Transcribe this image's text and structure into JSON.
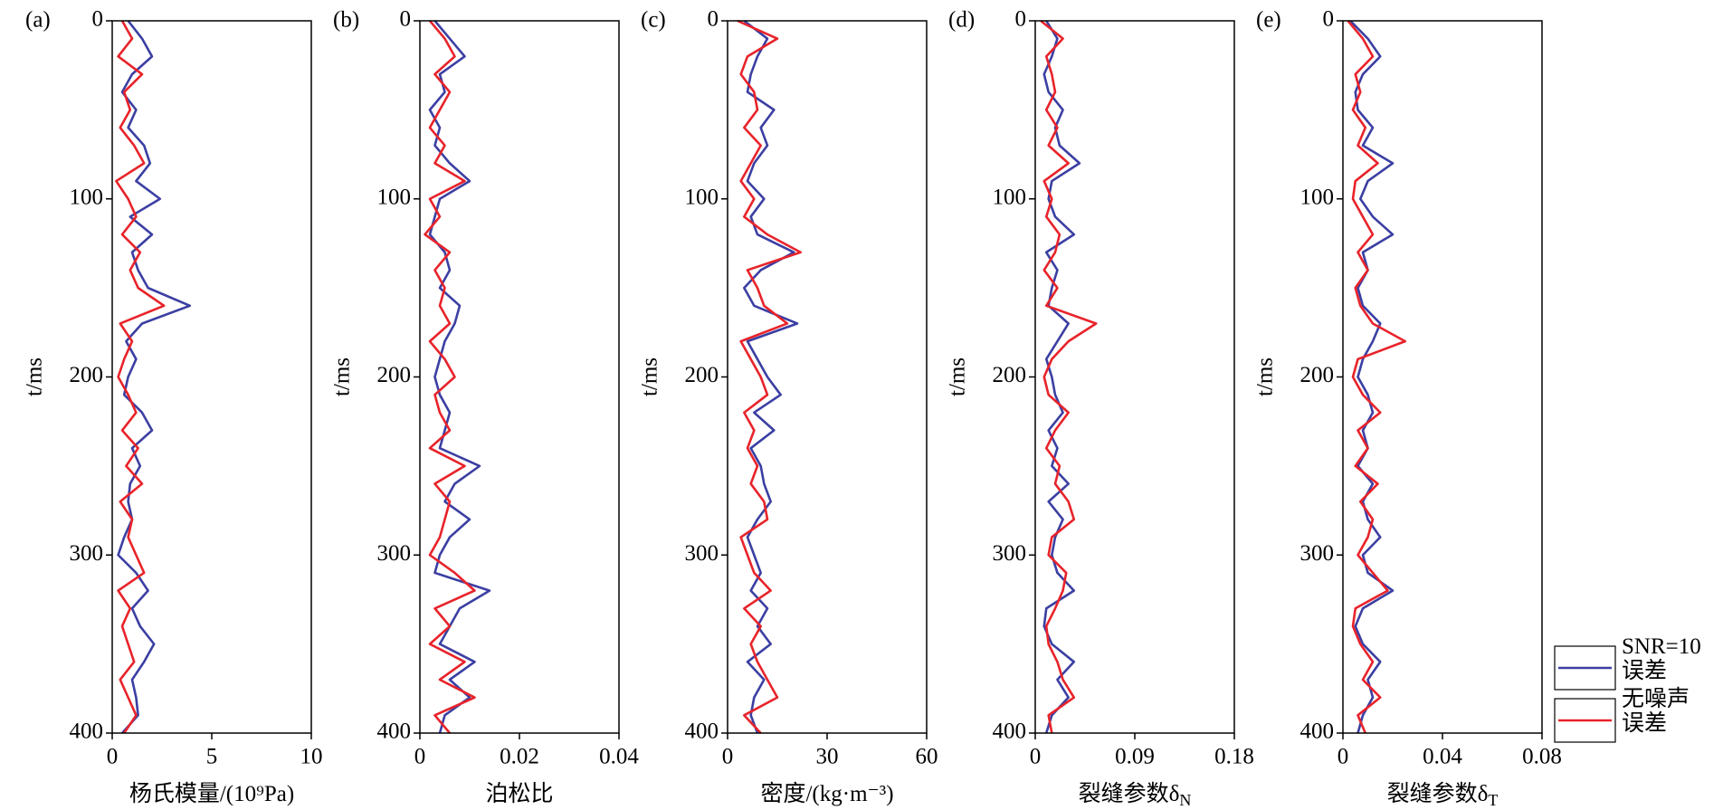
{
  "chart_data": [
    {
      "type": "line",
      "panel": "(a)",
      "xlabel": "杨氏模量/(10⁹Pa)",
      "ylabel": "t/ms",
      "xlim": [
        0,
        10
      ],
      "xticks": [
        0,
        5,
        10
      ],
      "ylim": [
        0,
        400
      ],
      "yticks": [
        0,
        100,
        200,
        300,
        400
      ],
      "yreverse": true,
      "y": [
        0,
        10,
        20,
        30,
        40,
        50,
        60,
        70,
        80,
        90,
        100,
        110,
        120,
        130,
        140,
        150,
        160,
        170,
        180,
        190,
        200,
        210,
        220,
        230,
        240,
        250,
        260,
        270,
        280,
        290,
        300,
        310,
        320,
        330,
        340,
        350,
        360,
        370,
        380,
        390,
        400
      ],
      "series": [
        {
          "name": "SNR=10\n误差",
          "color": "#3b3fa2",
          "values": [
            0.8,
            1.5,
            2.0,
            1.0,
            0.5,
            1.2,
            0.8,
            1.6,
            1.9,
            1.2,
            2.4,
            0.9,
            2.0,
            1.0,
            1.3,
            1.8,
            3.9,
            1.5,
            0.7,
            1.2,
            0.8,
            0.6,
            1.5,
            2.0,
            1.0,
            1.4,
            0.9,
            0.8,
            1.0,
            0.6,
            0.3,
            1.2,
            1.8,
            1.0,
            1.4,
            2.1,
            1.6,
            1.0,
            1.2,
            1.3,
            0.5
          ]
        },
        {
          "name": "无噪声\n误差",
          "color": "#e8232a",
          "values": [
            0.5,
            1.0,
            0.3,
            1.5,
            0.6,
            0.9,
            0.4,
            1.1,
            1.6,
            0.2,
            0.8,
            1.2,
            0.5,
            1.4,
            0.9,
            1.3,
            2.6,
            0.4,
            1.0,
            0.6,
            0.3,
            0.8,
            1.2,
            0.5,
            1.3,
            0.7,
            1.5,
            0.4,
            1.0,
            0.8,
            1.2,
            1.6,
            0.3,
            0.9,
            0.5,
            0.8,
            1.1,
            0.4,
            0.8,
            1.2,
            0.6
          ]
        }
      ]
    },
    {
      "type": "line",
      "panel": "(b)",
      "xlabel": "泊松比",
      "ylabel": "t/ms",
      "xlim": [
        0,
        0.04
      ],
      "xticks": [
        0,
        0.02,
        0.04
      ],
      "ylim": [
        0,
        400
      ],
      "yticks": [
        0,
        100,
        200,
        300,
        400
      ],
      "yreverse": true,
      "y": [
        0,
        10,
        20,
        30,
        40,
        50,
        60,
        70,
        80,
        90,
        100,
        110,
        120,
        130,
        140,
        150,
        160,
        170,
        180,
        190,
        200,
        210,
        220,
        230,
        240,
        250,
        260,
        270,
        280,
        290,
        300,
        310,
        320,
        330,
        340,
        350,
        360,
        370,
        380,
        390,
        400
      ],
      "series": [
        {
          "color": "#3b3fa2",
          "values": [
            0.003,
            0.006,
            0.009,
            0.004,
            0.005,
            0.002,
            0.004,
            0.003,
            0.006,
            0.01,
            0.004,
            0.003,
            0.002,
            0.005,
            0.006,
            0.004,
            0.008,
            0.007,
            0.005,
            0.004,
            0.003,
            0.004,
            0.006,
            0.005,
            0.004,
            0.012,
            0.007,
            0.005,
            0.01,
            0.006,
            0.004,
            0.003,
            0.014,
            0.008,
            0.006,
            0.004,
            0.011,
            0.006,
            0.01,
            0.005,
            0.004
          ]
        },
        {
          "color": "#e8232a",
          "values": [
            0.002,
            0.005,
            0.007,
            0.003,
            0.006,
            0.004,
            0.002,
            0.005,
            0.003,
            0.009,
            0.002,
            0.004,
            0.001,
            0.006,
            0.003,
            0.005,
            0.004,
            0.006,
            0.002,
            0.005,
            0.007,
            0.003,
            0.004,
            0.006,
            0.002,
            0.009,
            0.003,
            0.006,
            0.005,
            0.004,
            0.002,
            0.007,
            0.011,
            0.003,
            0.006,
            0.002,
            0.009,
            0.004,
            0.011,
            0.003,
            0.006
          ]
        }
      ]
    },
    {
      "type": "line",
      "panel": "(c)",
      "xlabel": "密度/(kg·m⁻³)",
      "ylabel": "t/ms",
      "xlim": [
        0,
        60
      ],
      "xticks": [
        0,
        30,
        60
      ],
      "ylim": [
        0,
        400
      ],
      "yticks": [
        0,
        100,
        200,
        300,
        400
      ],
      "yreverse": true,
      "y": [
        0,
        10,
        20,
        30,
        40,
        50,
        60,
        70,
        80,
        90,
        100,
        110,
        120,
        130,
        140,
        150,
        160,
        170,
        180,
        190,
        200,
        210,
        220,
        230,
        240,
        250,
        260,
        270,
        280,
        290,
        300,
        310,
        320,
        330,
        340,
        350,
        360,
        370,
        380,
        390,
        400
      ],
      "series": [
        {
          "color": "#3b3fa2",
          "values": [
            5,
            12,
            9,
            7,
            6,
            14,
            10,
            12,
            8,
            6,
            11,
            7,
            9,
            20,
            10,
            5,
            8,
            21,
            6,
            9,
            12,
            16,
            8,
            14,
            7,
            10,
            11,
            13,
            9,
            6,
            8,
            10,
            7,
            12,
            9,
            13,
            6,
            11,
            8,
            7,
            9
          ]
        },
        {
          "color": "#e8232a",
          "values": [
            3,
            15,
            6,
            4,
            8,
            9,
            5,
            10,
            7,
            4,
            8,
            5,
            12,
            22,
            6,
            9,
            11,
            18,
            4,
            7,
            10,
            12,
            5,
            8,
            6,
            9,
            7,
            11,
            12,
            4,
            6,
            8,
            13,
            5,
            10,
            7,
            9,
            12,
            15,
            5,
            10
          ]
        }
      ]
    },
    {
      "type": "line",
      "panel": "(d)",
      "xlabel": "裂缝参数δ",
      "xlabel_sub": "N",
      "ylabel": "t/ms",
      "xlim": [
        0,
        0.18
      ],
      "xticks": [
        0,
        0.09,
        0.18
      ],
      "ylim": [
        0,
        400
      ],
      "yticks": [
        0,
        100,
        200,
        300,
        400
      ],
      "yreverse": true,
      "y": [
        0,
        10,
        20,
        30,
        40,
        50,
        60,
        70,
        80,
        90,
        100,
        110,
        120,
        130,
        140,
        150,
        160,
        170,
        180,
        190,
        200,
        210,
        220,
        230,
        240,
        250,
        260,
        270,
        280,
        290,
        300,
        310,
        320,
        330,
        340,
        350,
        360,
        370,
        380,
        390,
        400
      ],
      "series": [
        {
          "color": "#3b3fa2",
          "values": [
            0.01,
            0.02,
            0.015,
            0.008,
            0.012,
            0.025,
            0.018,
            0.022,
            0.04,
            0.015,
            0.012,
            0.018,
            0.035,
            0.01,
            0.02,
            0.015,
            0.012,
            0.03,
            0.02,
            0.01,
            0.015,
            0.018,
            0.025,
            0.012,
            0.02,
            0.015,
            0.03,
            0.012,
            0.025,
            0.018,
            0.015,
            0.02,
            0.035,
            0.01,
            0.008,
            0.015,
            0.035,
            0.02,
            0.03,
            0.015,
            0.01
          ]
        },
        {
          "color": "#e8232a",
          "values": [
            0.005,
            0.025,
            0.01,
            0.015,
            0.018,
            0.01,
            0.02,
            0.012,
            0.03,
            0.008,
            0.015,
            0.01,
            0.022,
            0.018,
            0.008,
            0.02,
            0.01,
            0.055,
            0.03,
            0.015,
            0.008,
            0.012,
            0.03,
            0.018,
            0.01,
            0.022,
            0.018,
            0.03,
            0.035,
            0.015,
            0.012,
            0.028,
            0.025,
            0.018,
            0.01,
            0.012,
            0.02,
            0.025,
            0.035,
            0.012,
            0.015
          ]
        }
      ]
    },
    {
      "type": "line",
      "panel": "(e)",
      "xlabel": "裂缝参数δ",
      "xlabel_sub": "T",
      "ylabel": "t/ms",
      "xlim": [
        0,
        0.08
      ],
      "xticks": [
        0,
        0.04,
        0.08
      ],
      "ylim": [
        0,
        400
      ],
      "yticks": [
        0,
        100,
        200,
        300,
        400
      ],
      "yreverse": true,
      "y": [
        0,
        10,
        20,
        30,
        40,
        50,
        60,
        70,
        80,
        90,
        100,
        110,
        120,
        130,
        140,
        150,
        160,
        170,
        180,
        190,
        200,
        210,
        220,
        230,
        240,
        250,
        260,
        270,
        280,
        290,
        300,
        310,
        320,
        330,
        340,
        350,
        360,
        370,
        380,
        390,
        400
      ],
      "series": [
        {
          "color": "#3b3fa2",
          "values": [
            0.003,
            0.01,
            0.015,
            0.008,
            0.005,
            0.006,
            0.012,
            0.008,
            0.02,
            0.01,
            0.007,
            0.012,
            0.02,
            0.008,
            0.01,
            0.006,
            0.008,
            0.015,
            0.012,
            0.008,
            0.006,
            0.01,
            0.012,
            0.008,
            0.01,
            0.006,
            0.012,
            0.008,
            0.01,
            0.015,
            0.008,
            0.01,
            0.02,
            0.008,
            0.005,
            0.008,
            0.015,
            0.01,
            0.012,
            0.008,
            0.006
          ]
        },
        {
          "color": "#e8232a",
          "values": [
            0.002,
            0.008,
            0.012,
            0.005,
            0.007,
            0.004,
            0.009,
            0.006,
            0.014,
            0.005,
            0.004,
            0.008,
            0.012,
            0.006,
            0.01,
            0.005,
            0.007,
            0.012,
            0.025,
            0.006,
            0.004,
            0.008,
            0.015,
            0.006,
            0.01,
            0.005,
            0.014,
            0.007,
            0.012,
            0.01,
            0.006,
            0.012,
            0.018,
            0.005,
            0.004,
            0.007,
            0.012,
            0.008,
            0.015,
            0.006,
            0.009
          ]
        }
      ]
    }
  ]
}
